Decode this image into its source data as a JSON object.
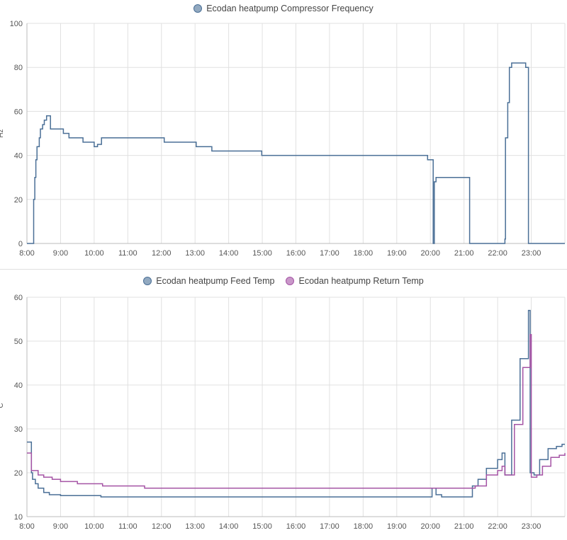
{
  "colors": {
    "feed": "#4a6f96",
    "return": "#a554a5",
    "compressor": "#4a6f96",
    "grid": "#e0e0e0"
  },
  "chart_data": [
    {
      "type": "line",
      "legend": [
        "Ecodan heatpump Compressor Frequency"
      ],
      "ylabel": "Hz",
      "x_ticks": [
        "8:00",
        "9:00",
        "10:00",
        "11:00",
        "12:00",
        "13:00",
        "14:00",
        "15:00",
        "16:00",
        "17:00",
        "18:00",
        "19:00",
        "20:00",
        "21:00",
        "22:00",
        "23:00"
      ],
      "y_ticks": [
        "0",
        "20",
        "40",
        "60",
        "80",
        "100"
      ],
      "ylim": [
        0,
        100
      ],
      "xlim": [
        "8:00",
        "24:00"
      ],
      "grid": true,
      "legend_position": "top",
      "series": [
        {
          "name": "Ecodan heatpump Compressor Frequency",
          "step": true,
          "points": [
            [
              "8:00",
              0
            ],
            [
              "8:10",
              0
            ],
            [
              "8:12",
              20
            ],
            [
              "8:14",
              30
            ],
            [
              "8:16",
              38
            ],
            [
              "8:18",
              44
            ],
            [
              "8:22",
              48
            ],
            [
              "8:24",
              52
            ],
            [
              "8:28",
              54
            ],
            [
              "8:31",
              56
            ],
            [
              "8:35",
              58
            ],
            [
              "8:42",
              52
            ],
            [
              "9:05",
              50
            ],
            [
              "9:15",
              48
            ],
            [
              "9:30",
              48
            ],
            [
              "9:40",
              46
            ],
            [
              "10:00",
              44
            ],
            [
              "10:06",
              45
            ],
            [
              "10:13",
              48
            ],
            [
              "11:00",
              48
            ],
            [
              "12:05",
              46
            ],
            [
              "13:00",
              46
            ],
            [
              "13:02",
              44
            ],
            [
              "13:30",
              42
            ],
            [
              "14:59",
              40
            ],
            [
              "19:55",
              38
            ],
            [
              "20:05",
              0
            ],
            [
              "20:07",
              28
            ],
            [
              "20:10",
              30
            ],
            [
              "21:10",
              0
            ],
            [
              "22:13",
              2
            ],
            [
              "22:14",
              48
            ],
            [
              "22:18",
              64
            ],
            [
              "22:21",
              80
            ],
            [
              "22:25",
              82
            ],
            [
              "22:50",
              80
            ],
            [
              "22:55",
              0
            ],
            [
              "24:00",
              0
            ]
          ]
        }
      ]
    },
    {
      "type": "line",
      "legend": [
        "Ecodan heatpump Feed Temp",
        "Ecodan heatpump Return Temp"
      ],
      "ylabel": "°C",
      "x_ticks": [
        "8:00",
        "9:00",
        "10:00",
        "11:00",
        "12:00",
        "13:00",
        "14:00",
        "15:00",
        "16:00",
        "17:00",
        "18:00",
        "19:00",
        "20:00",
        "21:00",
        "22:00",
        "23:00"
      ],
      "y_ticks": [
        "10",
        "20",
        "30",
        "40",
        "50",
        "60"
      ],
      "ylim": [
        10,
        60
      ],
      "xlim": [
        "8:00",
        "24:00"
      ],
      "grid": true,
      "legend_position": "top",
      "series": [
        {
          "name": "Ecodan heatpump Feed Temp",
          "step": true,
          "points": [
            [
              "8:00",
              27
            ],
            [
              "8:08",
              20
            ],
            [
              "8:10",
              18.5
            ],
            [
              "8:15",
              17.5
            ],
            [
              "8:20",
              16.5
            ],
            [
              "8:30",
              15.5
            ],
            [
              "8:40",
              15
            ],
            [
              "9:00",
              14.8
            ],
            [
              "10:00",
              14.8
            ],
            [
              "10:12",
              14.5
            ],
            [
              "15:00",
              14.5
            ],
            [
              "20:00",
              14.5
            ],
            [
              "20:03",
              16.5
            ],
            [
              "20:10",
              15
            ],
            [
              "20:20",
              14.5
            ],
            [
              "21:10",
              14.5
            ],
            [
              "21:15",
              17
            ],
            [
              "21:25",
              18.5
            ],
            [
              "21:40",
              21
            ],
            [
              "22:00",
              23
            ],
            [
              "22:08",
              24.5
            ],
            [
              "22:13",
              19.5
            ],
            [
              "22:25",
              32
            ],
            [
              "22:40",
              46
            ],
            [
              "22:55",
              57
            ],
            [
              "22:58",
              20
            ],
            [
              "23:05",
              19.5
            ],
            [
              "23:15",
              23
            ],
            [
              "23:30",
              25.5
            ],
            [
              "23:45",
              26
            ],
            [
              "23:55",
              26.5
            ],
            [
              "24:00",
              26.5
            ]
          ]
        },
        {
          "name": "Ecodan heatpump Return Temp",
          "step": true,
          "points": [
            [
              "8:00",
              24.5
            ],
            [
              "8:08",
              20.5
            ],
            [
              "8:20",
              19.5
            ],
            [
              "8:30",
              19
            ],
            [
              "8:45",
              18.5
            ],
            [
              "9:00",
              18
            ],
            [
              "9:30",
              17.5
            ],
            [
              "10:15",
              17
            ],
            [
              "11:30",
              16.5
            ],
            [
              "21:10",
              16.5
            ],
            [
              "21:20",
              17
            ],
            [
              "21:40",
              19.5
            ],
            [
              "22:00",
              20.5
            ],
            [
              "22:08",
              21.5
            ],
            [
              "22:13",
              19.5
            ],
            [
              "22:30",
              31
            ],
            [
              "22:45",
              44
            ],
            [
              "22:58",
              51.5
            ],
            [
              "23:00",
              19
            ],
            [
              "23:10",
              19.5
            ],
            [
              "23:20",
              21.5
            ],
            [
              "23:35",
              23.5
            ],
            [
              "23:50",
              24
            ],
            [
              "24:00",
              24.5
            ]
          ]
        }
      ]
    }
  ]
}
